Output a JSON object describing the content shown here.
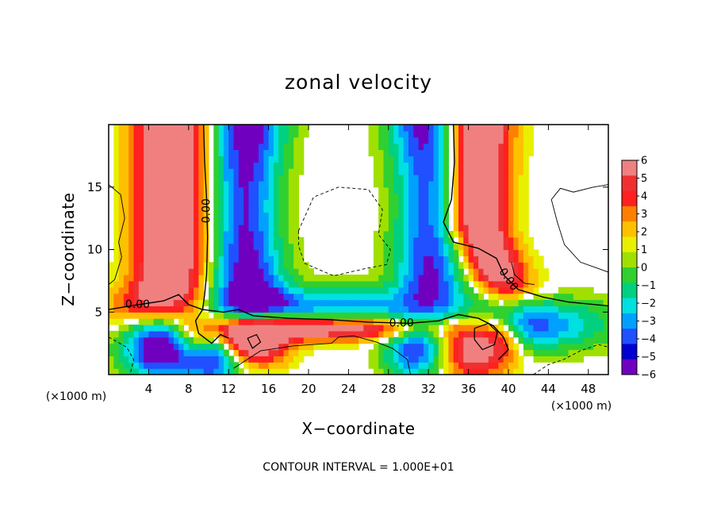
{
  "chart_data": {
    "type": "heatmap",
    "title": "zonal velocity",
    "xlabel": "X−coordinate",
    "ylabel": "Z−coordinate",
    "x_unit": "(×1000 m)",
    "y_unit": "(×1000 m)",
    "xlim": [
      0,
      50
    ],
    "ylim": [
      0,
      20
    ],
    "x_ticks": [
      4,
      8,
      12,
      16,
      20,
      24,
      28,
      32,
      36,
      40,
      44,
      48
    ],
    "y_ticks": [
      5,
      10,
      15
    ],
    "footer": "CONTOUR INTERVAL = 1.000E+01",
    "colorbar": {
      "levels": [
        6,
        5,
        4,
        3,
        2,
        1,
        0,
        -1,
        -2,
        -3,
        -4,
        -5,
        -6
      ],
      "labels": [
        "6",
        "5",
        "4",
        "3",
        "2",
        "1",
        "0",
        "−1",
        "−2",
        "−3",
        "−4",
        "−5",
        "−6"
      ],
      "colors": [
        "#f08080",
        "#f03030",
        "#ff2020",
        "#ff8000",
        "#ffc000",
        "#e8f000",
        "#a0e000",
        "#30d030",
        "#00d080",
        "#00e0e0",
        "#00a0ff",
        "#2050ff",
        "#0000d0",
        "#7000c0"
      ]
    },
    "contour_labels": [
      {
        "text": "0.00",
        "x": 9.8,
        "y": 13.1,
        "rotate": -90
      },
      {
        "text": "0.00",
        "x": 2.9,
        "y": 5.6,
        "rotate": 0
      },
      {
        "text": "0.00",
        "x": 29.3,
        "y": 4.1,
        "rotate": 0
      },
      {
        "text": "0.00",
        "x": 40.0,
        "y": 7.6,
        "rotate": 55
      }
    ]
  }
}
